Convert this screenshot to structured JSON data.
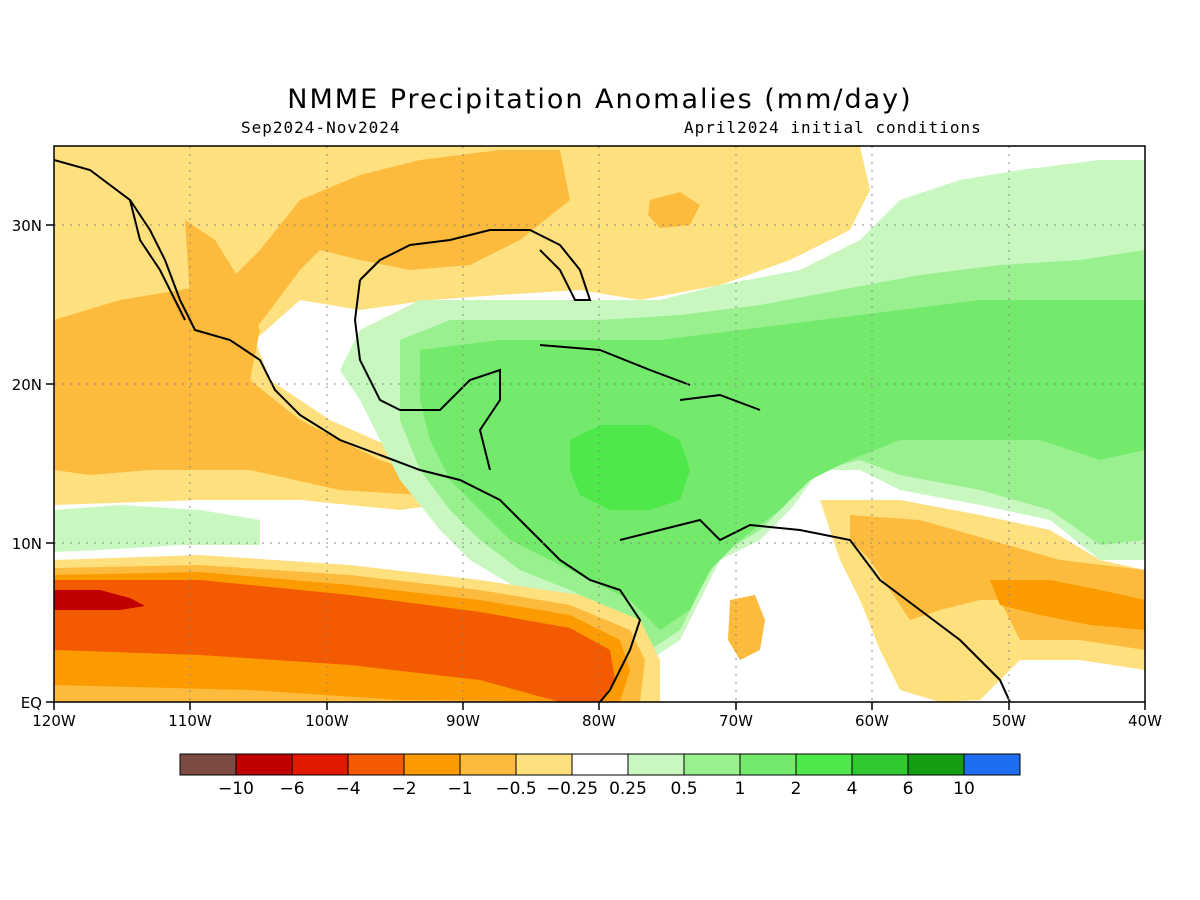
{
  "title": "NMME Precipitation Anomalies (mm/day)",
  "period": "Sep2024-Nov2024",
  "init": "April2024 initial conditions",
  "lat_ticks": [
    "EQ",
    "10N",
    "20N",
    "30N"
  ],
  "lon_ticks": [
    "120W",
    "110W",
    "100W",
    "90W",
    "80W",
    "70W",
    "60W",
    "50W",
    "40W"
  ],
  "colorbar": {
    "colors": [
      "#7b4b43",
      "#c00000",
      "#e01a00",
      "#f45a00",
      "#fb9b00",
      "#fdbb3d",
      "#fee07f",
      "#ffffff",
      "#c8f7c0",
      "#98f08f",
      "#74ea6c",
      "#4ee84a",
      "#31c92f",
      "#159e12",
      "#1e6ef0"
    ],
    "labels": [
      "-10",
      "-6",
      "-4",
      "-2",
      "-1",
      "-0.5",
      "-0.25",
      "0.25",
      "0.5",
      "1",
      "2",
      "4",
      "6",
      "10"
    ]
  }
}
